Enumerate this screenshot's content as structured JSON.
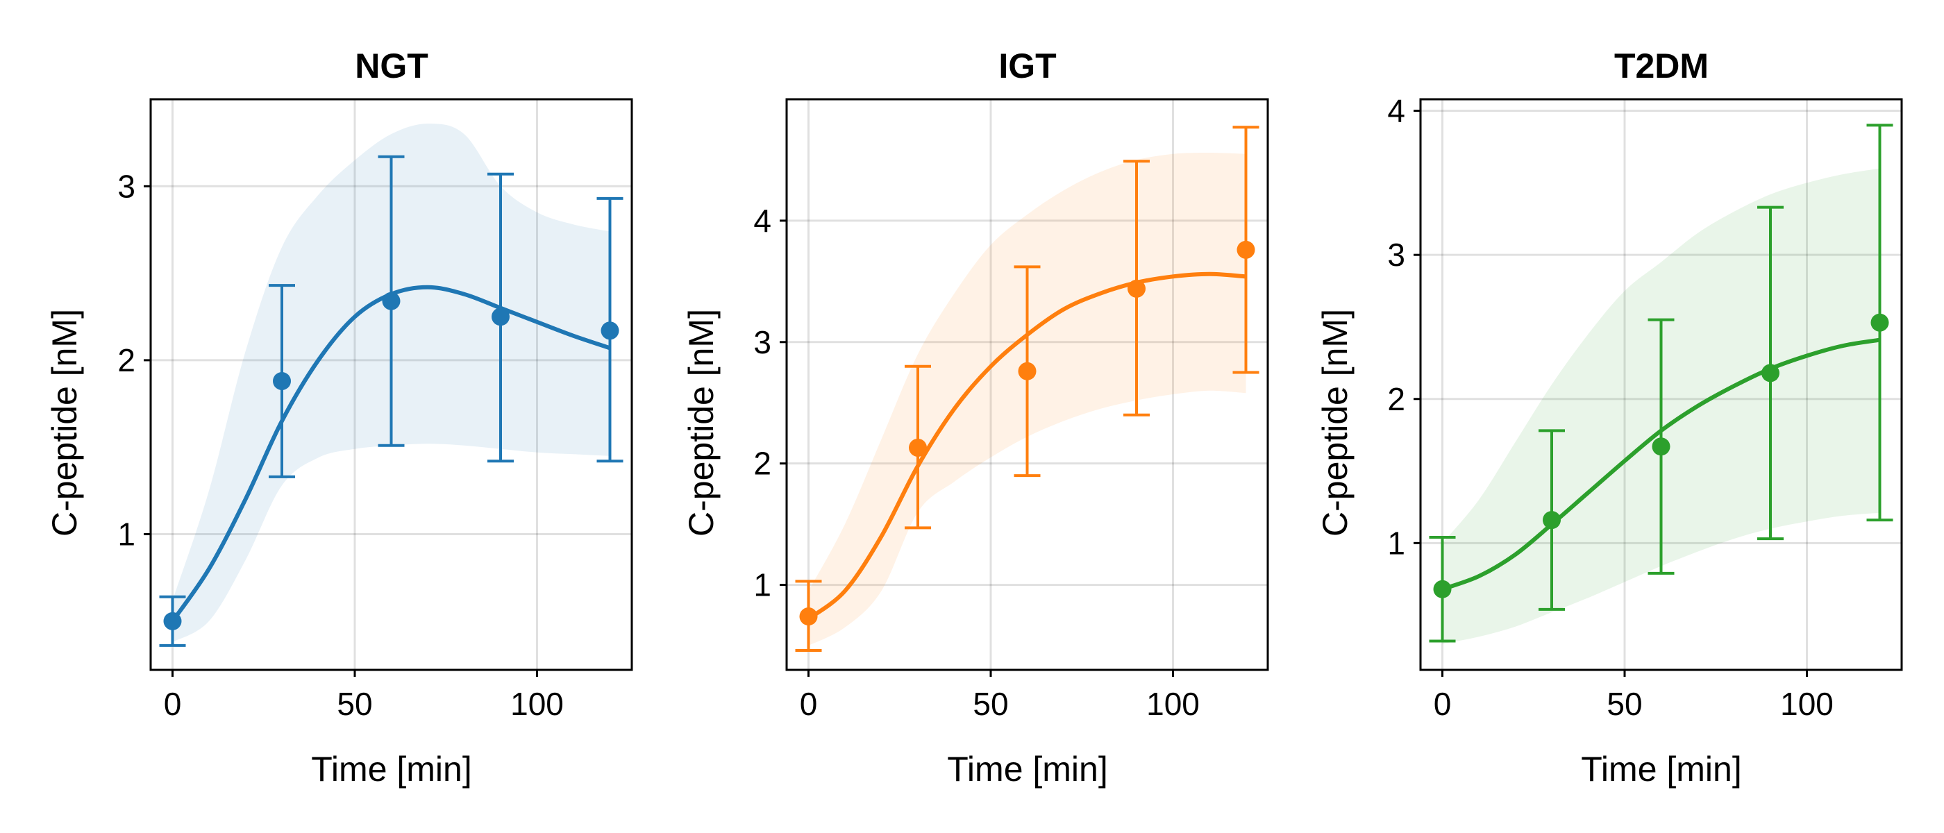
{
  "chart_data": [
    {
      "type": "line",
      "title": "NGT",
      "xlabel": "Time [min]",
      "ylabel": "C-peptide [nM]",
      "xlim": [
        -6,
        126
      ],
      "ylim": [
        0.22,
        3.5
      ],
      "xticks": [
        0,
        50,
        100
      ],
      "yticks": [
        1,
        2,
        3
      ],
      "grid": true,
      "color": "#1f77b4",
      "observations": {
        "x": [
          0,
          30,
          60,
          90,
          120
        ],
        "y": [
          0.5,
          1.88,
          2.34,
          2.25,
          2.17
        ],
        "err_low": [
          0.36,
          1.33,
          1.51,
          1.42,
          1.42
        ],
        "err_high": [
          0.64,
          2.43,
          3.17,
          3.07,
          2.93
        ]
      },
      "fit": {
        "x": [
          0,
          10,
          20,
          30,
          40,
          50,
          60,
          70,
          80,
          90,
          100,
          110,
          120
        ],
        "y": [
          0.5,
          0.8,
          1.2,
          1.65,
          2.0,
          2.25,
          2.38,
          2.42,
          2.38,
          2.3,
          2.22,
          2.14,
          2.07
        ]
      },
      "band": {
        "x": [
          0,
          10,
          20,
          30,
          40,
          50,
          60,
          70,
          80,
          90,
          100,
          110,
          120
        ],
        "lower": [
          0.38,
          0.5,
          0.85,
          1.28,
          1.44,
          1.49,
          1.51,
          1.52,
          1.51,
          1.49,
          1.47,
          1.46,
          1.45
        ],
        "upper": [
          0.62,
          1.25,
          2.05,
          2.65,
          2.95,
          3.15,
          3.3,
          3.36,
          3.3,
          3.0,
          2.85,
          2.78,
          2.74
        ]
      }
    },
    {
      "type": "line",
      "title": "IGT",
      "xlabel": "Time [min]",
      "ylabel": "C-peptide [nM]",
      "xlim": [
        -6,
        126
      ],
      "ylim": [
        0.3,
        5.0
      ],
      "xticks": [
        0,
        50,
        100
      ],
      "yticks": [
        1,
        2,
        3,
        4
      ],
      "grid": true,
      "color": "#ff7f0e",
      "observations": {
        "x": [
          0,
          30,
          60,
          90,
          120
        ],
        "y": [
          0.74,
          2.13,
          2.76,
          3.44,
          3.76
        ],
        "err_low": [
          0.46,
          1.47,
          1.9,
          2.4,
          2.75
        ],
        "err_high": [
          1.03,
          2.8,
          3.62,
          4.49,
          4.77
        ]
      },
      "fit": {
        "x": [
          0,
          10,
          20,
          30,
          40,
          50,
          60,
          70,
          80,
          90,
          100,
          110,
          120
        ],
        "y": [
          0.72,
          0.95,
          1.4,
          1.98,
          2.45,
          2.8,
          3.06,
          3.27,
          3.4,
          3.49,
          3.54,
          3.56,
          3.54
        ]
      },
      "band": {
        "x": [
          0,
          10,
          20,
          30,
          40,
          50,
          60,
          70,
          80,
          90,
          100,
          110,
          120
        ],
        "lower": [
          0.5,
          0.65,
          0.95,
          1.6,
          1.85,
          2.05,
          2.22,
          2.35,
          2.45,
          2.52,
          2.57,
          2.6,
          2.58
        ],
        "upper": [
          0.95,
          1.5,
          2.2,
          2.9,
          3.4,
          3.8,
          4.05,
          4.25,
          4.4,
          4.5,
          4.55,
          4.56,
          4.55
        ]
      }
    },
    {
      "type": "line",
      "title": "T2DM",
      "xlabel": "Time [min]",
      "ylabel": "C-peptide [nM]",
      "xlim": [
        -6,
        126
      ],
      "ylim": [
        0.12,
        4.08
      ],
      "xticks": [
        0,
        50,
        100
      ],
      "yticks": [
        1,
        2,
        3,
        4
      ],
      "grid": true,
      "color": "#2ca02c",
      "observations": {
        "x": [
          0,
          30,
          60,
          90,
          120
        ],
        "y": [
          0.68,
          1.16,
          1.67,
          2.18,
          2.53
        ],
        "err_low": [
          0.32,
          0.54,
          0.79,
          1.03,
          1.16
        ],
        "err_high": [
          1.04,
          1.78,
          2.55,
          3.33,
          3.9
        ]
      },
      "fit": {
        "x": [
          0,
          10,
          20,
          30,
          40,
          50,
          60,
          70,
          80,
          90,
          100,
          110,
          120
        ],
        "y": [
          0.68,
          0.77,
          0.92,
          1.13,
          1.35,
          1.57,
          1.78,
          1.95,
          2.09,
          2.21,
          2.3,
          2.37,
          2.41
        ]
      },
      "band": {
        "x": [
          0,
          10,
          20,
          30,
          40,
          50,
          60,
          70,
          80,
          90,
          100,
          110,
          120
        ],
        "lower": [
          0.3,
          0.35,
          0.42,
          0.52,
          0.62,
          0.73,
          0.84,
          0.94,
          1.03,
          1.1,
          1.15,
          1.19,
          1.21
        ],
        "upper": [
          1.0,
          1.3,
          1.7,
          2.1,
          2.45,
          2.75,
          2.95,
          3.15,
          3.3,
          3.42,
          3.5,
          3.56,
          3.6
        ]
      }
    }
  ]
}
